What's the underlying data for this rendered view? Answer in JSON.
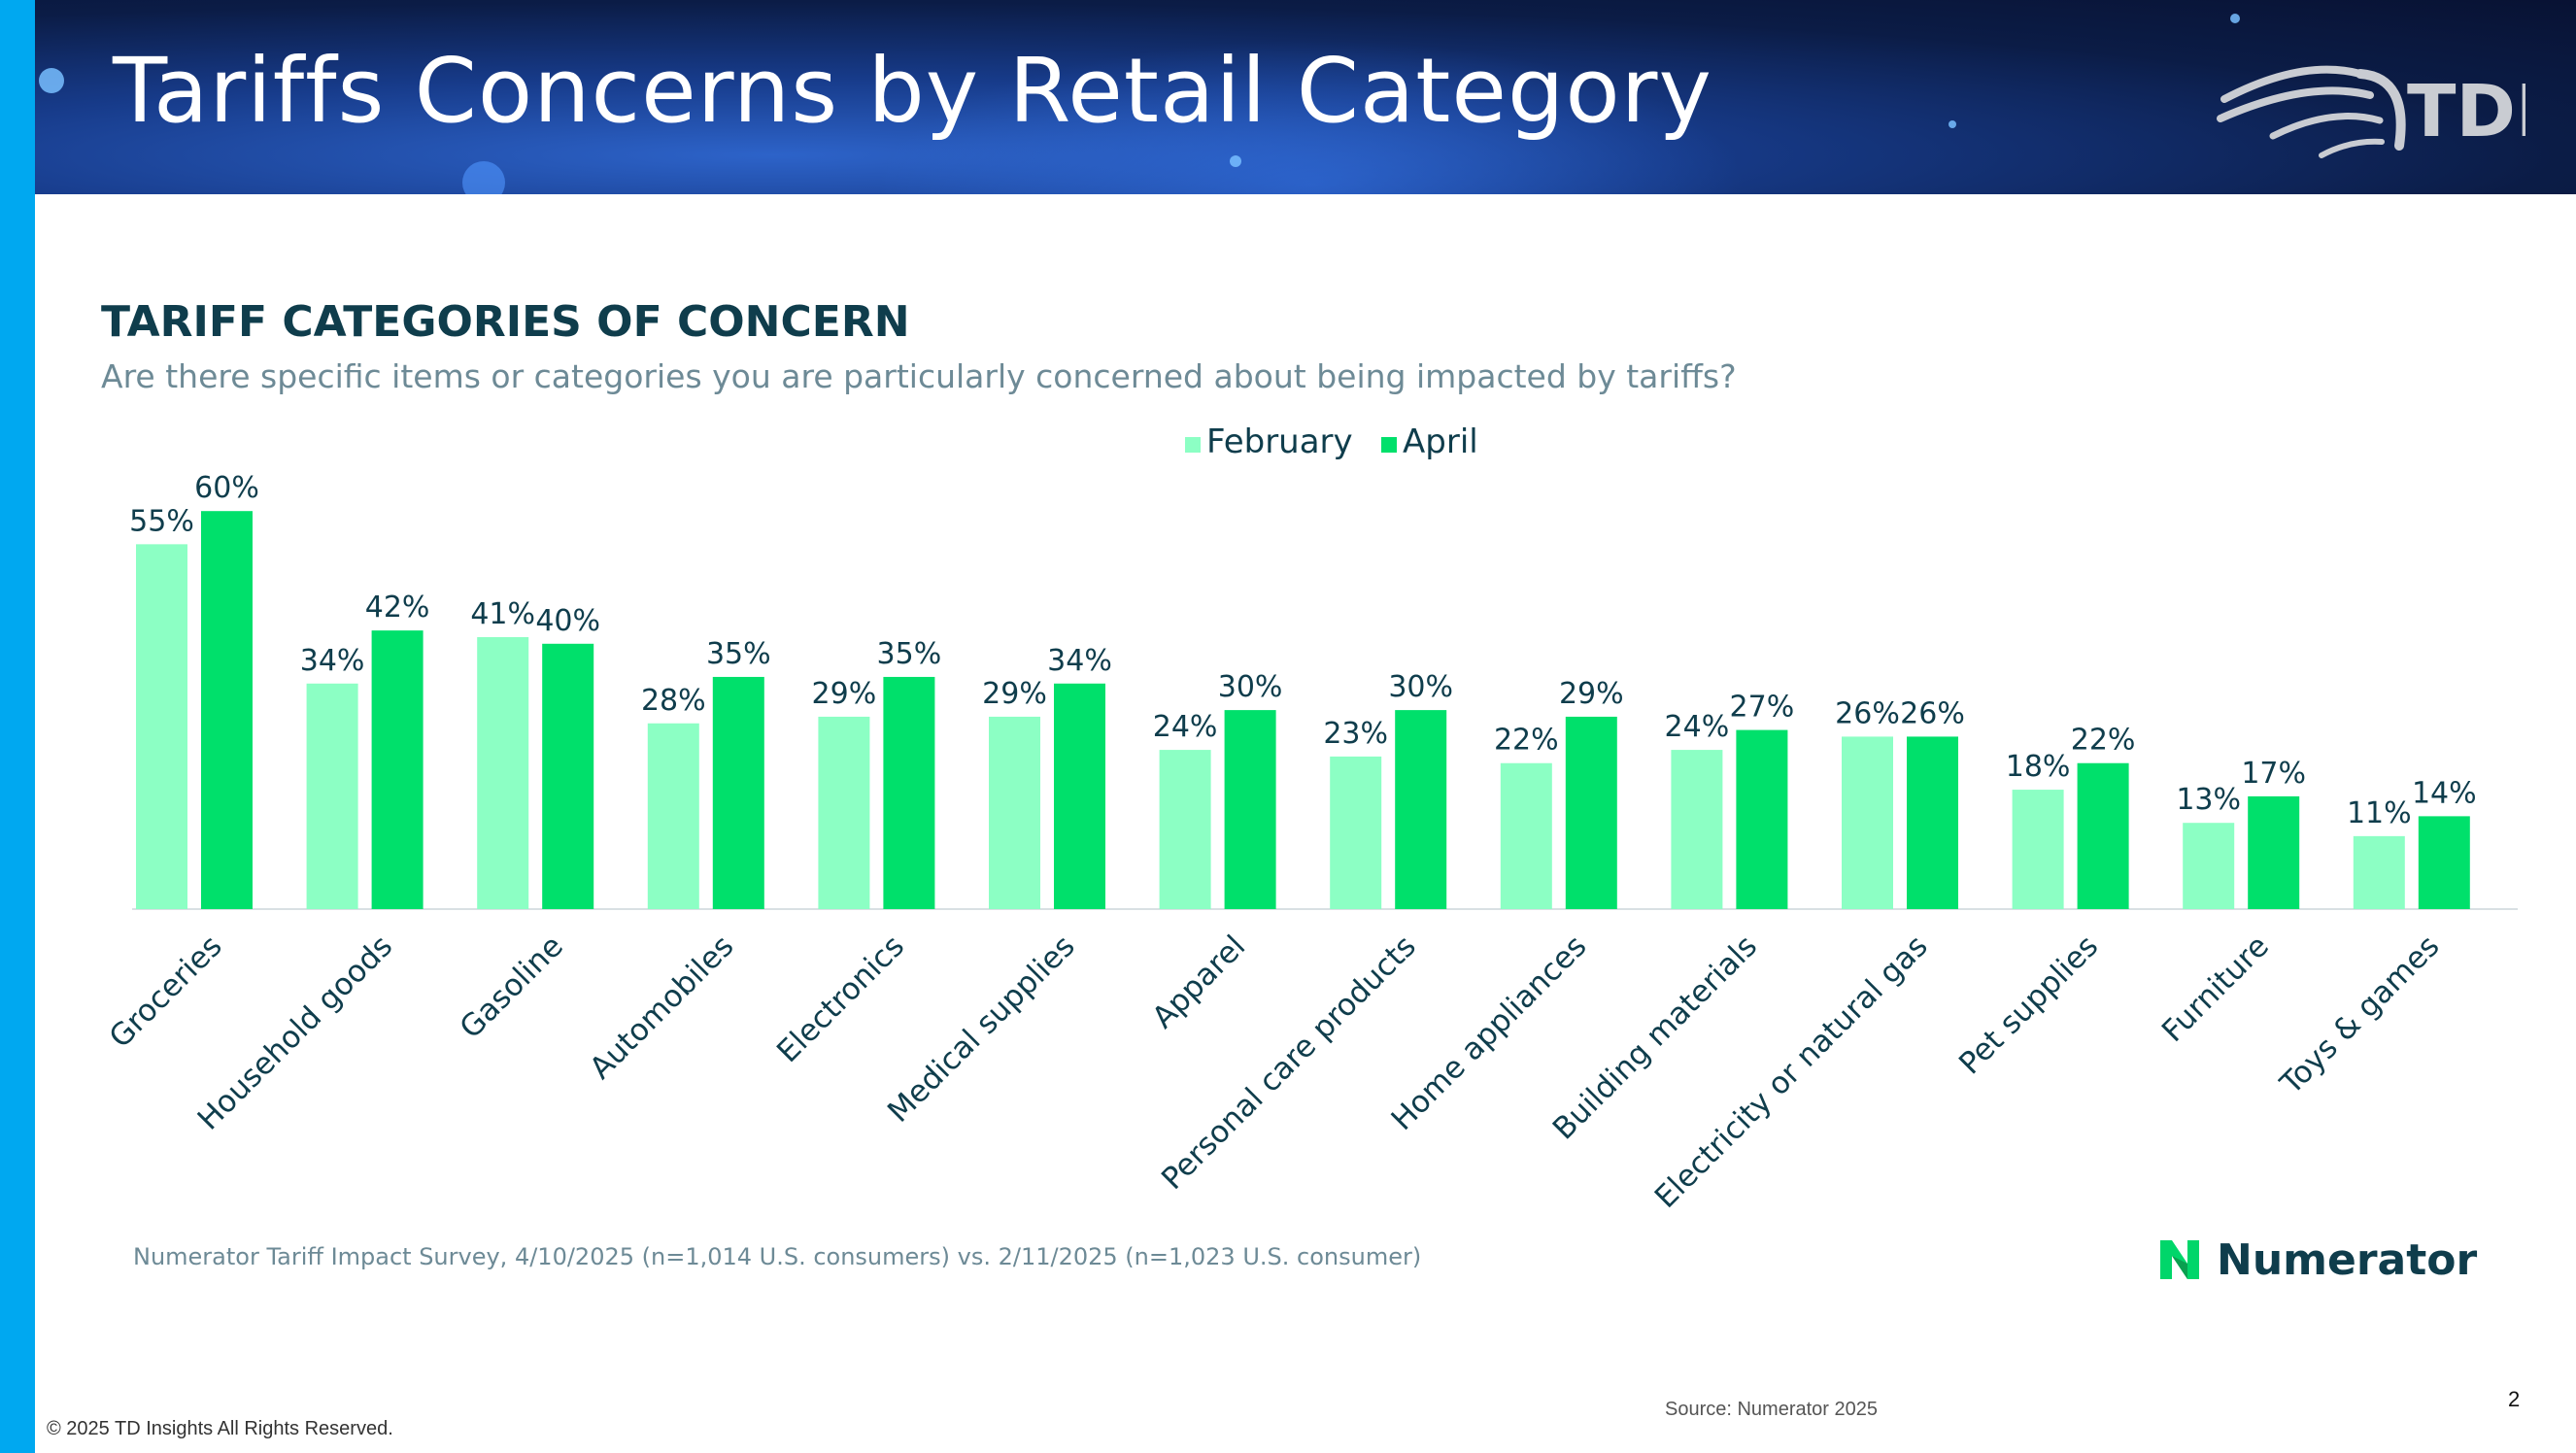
{
  "header": {
    "title": "Tariffs Concerns by Retail Category",
    "logo_text": "TDI"
  },
  "section": {
    "title": "TARIFF CATEGORIES OF CONCERN",
    "subtitle": "Are there specific items or categories you are particularly concerned about being impacted by tariffs?"
  },
  "chart_data": {
    "type": "bar",
    "categories": [
      "Groceries",
      "Household goods",
      "Gasoline",
      "Automobiles",
      "Electronics",
      "Medical supplies",
      "Apparel",
      "Personal care products",
      "Home appliances",
      "Building materials",
      "Electricity or natural gas",
      "Pet supplies",
      "Furniture",
      "Toys & games"
    ],
    "series": [
      {
        "name": "February",
        "color": "#8cffc4",
        "values": [
          55,
          34,
          41,
          28,
          29,
          29,
          24,
          23,
          22,
          24,
          26,
          18,
          13,
          11
        ]
      },
      {
        "name": "April",
        "color": "#00e06b",
        "values": [
          60,
          42,
          40,
          35,
          35,
          34,
          30,
          30,
          29,
          27,
          26,
          22,
          17,
          14
        ]
      }
    ],
    "value_suffix": "%",
    "ylim": [
      0,
      60
    ],
    "grid": false,
    "legend_position": "top-center",
    "label_color": "#0f3d4c"
  },
  "footer": {
    "survey_note": "Numerator Tariff Impact Survey, 4/10/2025 (n=1,014 U.S. consumers) vs. 2/11/2025 (n=1,023 U.S. consumer)",
    "numerator_label": "Numerator",
    "source": "Source: Numerator 2025",
    "page_number": "2",
    "copyright": "© 2025 TD Insights All Rights Reserved."
  }
}
